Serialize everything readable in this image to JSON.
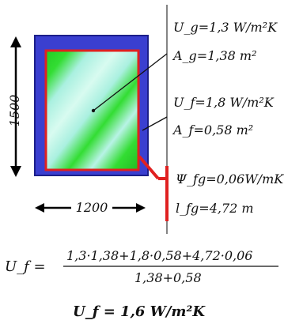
{
  "colors": {
    "frame_fill": "#3a3fd0",
    "frame_edge": "#1c1f8a",
    "glass_edge": "#e02020",
    "glass_green": "#22cc22",
    "glass_light": "#aaf0e0",
    "psi_line": "#e02020",
    "text": "#111111"
  },
  "dimensions": {
    "height": "1500",
    "width": "1200"
  },
  "labels": {
    "ug": "U_g=1,3 W/m²K",
    "ag": "A_g=1,38 m²",
    "uf": "U_f=1,8 W/m²K",
    "af": "A_f=0,58 m²",
    "psi": "Ψ_fg=0,06W/mK",
    "lfg": "l_fg=4,72 m"
  },
  "equation": {
    "lhs": "U_f =",
    "numerator": "1,3·1,38+1,8·0,58+4,72·0,06",
    "denominator": "1,38+0,58",
    "result": "U_f = 1,6 W/m²K"
  }
}
